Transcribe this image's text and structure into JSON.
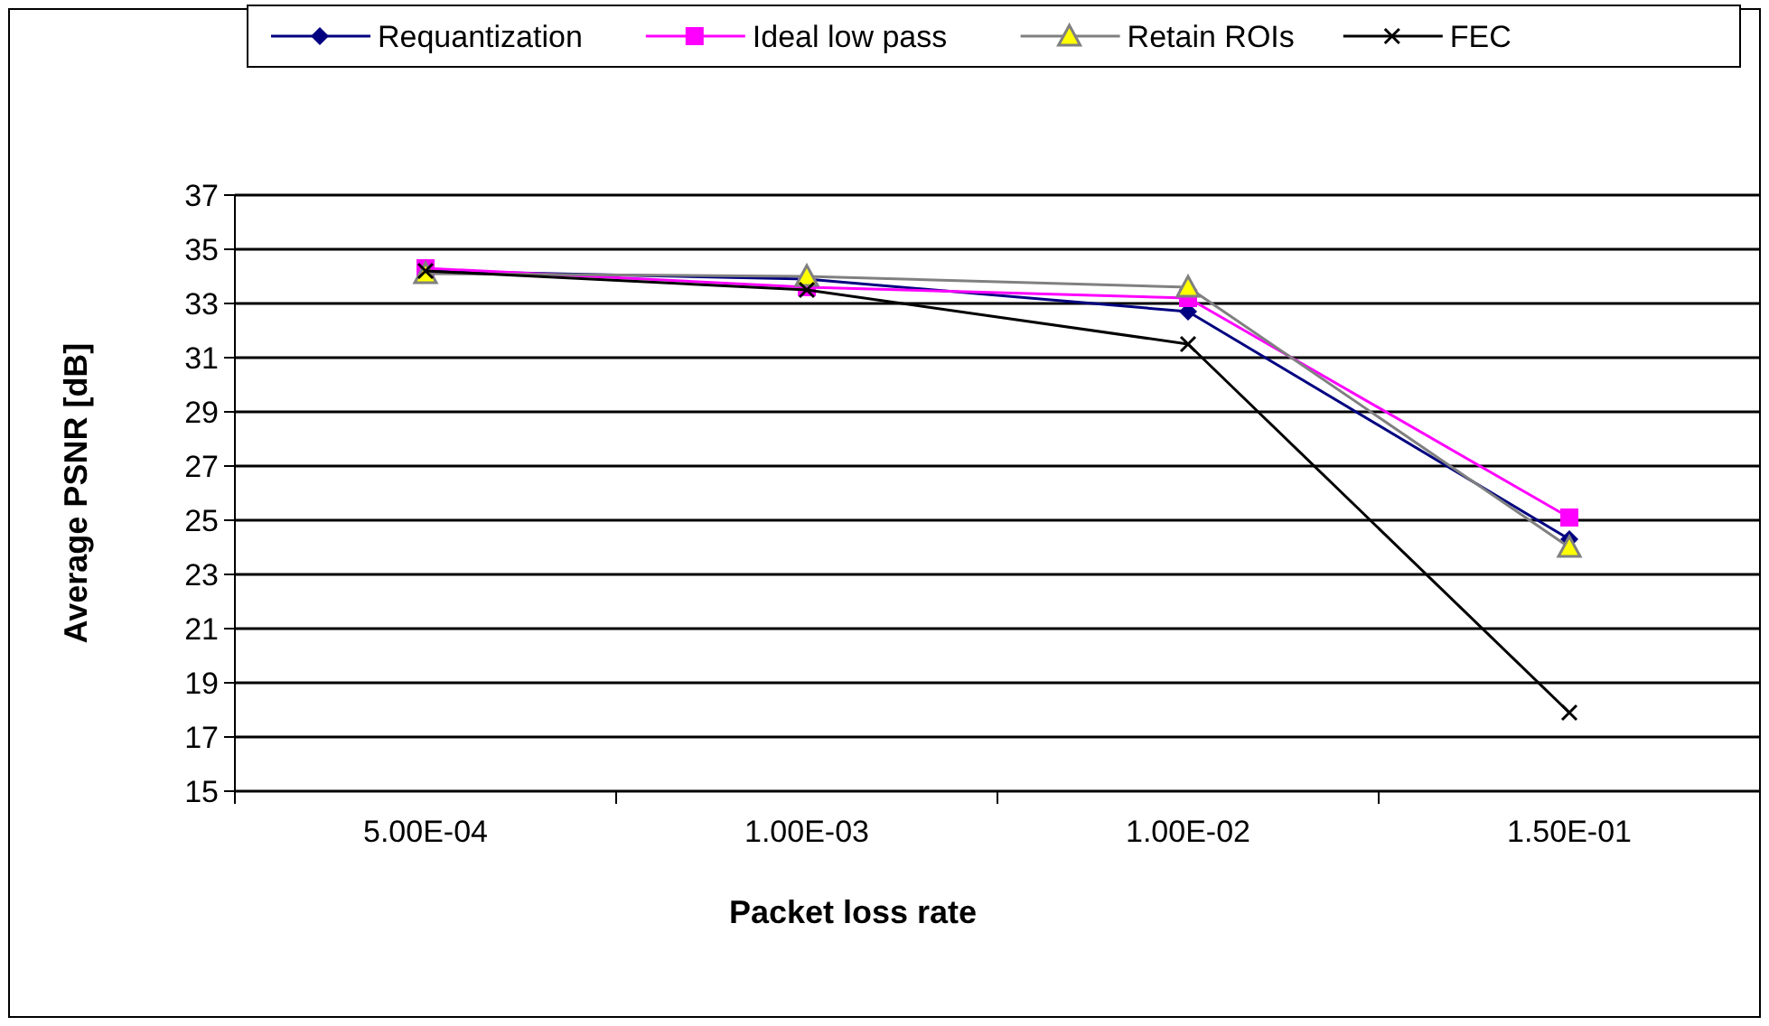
{
  "chart_data": {
    "type": "line",
    "xlabel": "Packet loss rate",
    "ylabel": "Average PSNR [dB]",
    "categories": [
      "5.00E-04",
      "1.00E-03",
      "1.00E-02",
      "1.50E-01"
    ],
    "series": [
      {
        "name": "Requantization",
        "color": "#000080",
        "marker": "diamond",
        "values": [
          34.2,
          33.9,
          32.7,
          24.3
        ]
      },
      {
        "name": "Ideal low pass",
        "color": "#ff00ff",
        "marker": "square",
        "values": [
          34.3,
          33.6,
          33.2,
          25.1
        ]
      },
      {
        "name": "Retain ROIs",
        "color": "#808080",
        "marker": "triangle",
        "values": [
          34.1,
          34.0,
          33.6,
          24.0
        ]
      },
      {
        "name": "FEC",
        "color": "#000000",
        "marker": "cross",
        "values": [
          34.2,
          33.5,
          31.5,
          17.9
        ]
      }
    ],
    "ylim": [
      15,
      37
    ],
    "yticks": [
      15,
      17,
      19,
      21,
      23,
      25,
      27,
      29,
      31,
      33,
      35,
      37
    ],
    "grid": "y",
    "legend": "top"
  }
}
